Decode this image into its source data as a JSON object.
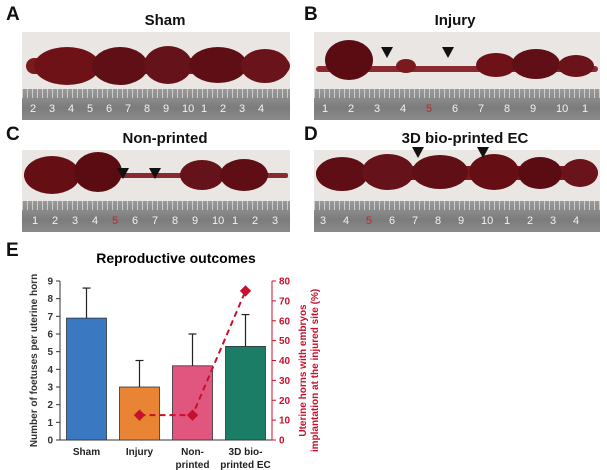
{
  "panels": {
    "A": {
      "letter": "A",
      "title": "Sham",
      "ruler": [
        "2",
        "3",
        "4",
        "5",
        "6",
        "7",
        "8",
        "9",
        "10",
        "1",
        "2",
        "3",
        "4"
      ]
    },
    "B": {
      "letter": "B",
      "title": "Injury",
      "ruler": [
        "1",
        "2",
        "3",
        "4",
        "5",
        "6",
        "7",
        "8",
        "9",
        "10",
        "1"
      ]
    },
    "C": {
      "letter": "C",
      "title": "Non-printed",
      "ruler": [
        "1",
        "2",
        "3",
        "4",
        "5",
        "6",
        "7",
        "8",
        "9",
        "10",
        "1",
        "2",
        "3"
      ]
    },
    "D": {
      "letter": "D",
      "title": "3D bio-printed EC",
      "ruler": [
        "3",
        "4",
        "5",
        "6",
        "7",
        "8",
        "9",
        "10",
        "1",
        "2",
        "3",
        "4"
      ]
    }
  },
  "colors": {
    "sham": "#3a78c2",
    "injury": "#e98435",
    "nonprinted": "#e0567f",
    "bioprinted": "#1b7d66",
    "secondary": "#c8102e"
  },
  "chart_data": {
    "type": "bar",
    "panel_letter": "E",
    "title": "Reproductive outcomes",
    "categories": [
      "Sham",
      "Injury",
      "Non-printed",
      "3D bio-printed EC"
    ],
    "category_labels": [
      [
        "Sham"
      ],
      [
        "Injury"
      ],
      [
        "Non-",
        "printed"
      ],
      [
        "3D bio-",
        "printed EC"
      ]
    ],
    "values": [
      6.9,
      3.0,
      4.2,
      5.3
    ],
    "errors": [
      1.7,
      1.5,
      1.8,
      1.8
    ],
    "ylabel": "Number of foetuses per uterine horn",
    "ylim": [
      0,
      9
    ],
    "yticks": [
      "0",
      "1",
      "2",
      "3",
      "4",
      "5",
      "6",
      "7",
      "8",
      "9"
    ],
    "secondary": {
      "ylabel": [
        "Uterine horns with embryos",
        "implantation at the injured site (%)"
      ],
      "ylim": [
        0,
        80
      ],
      "yticks": [
        "0",
        "10",
        "20",
        "30",
        "40",
        "50",
        "60",
        "70",
        "80"
      ],
      "categories": [
        "Injury",
        "Non-printed",
        "3D bio-printed EC"
      ],
      "values": [
        12.5,
        12.5,
        75
      ]
    }
  }
}
